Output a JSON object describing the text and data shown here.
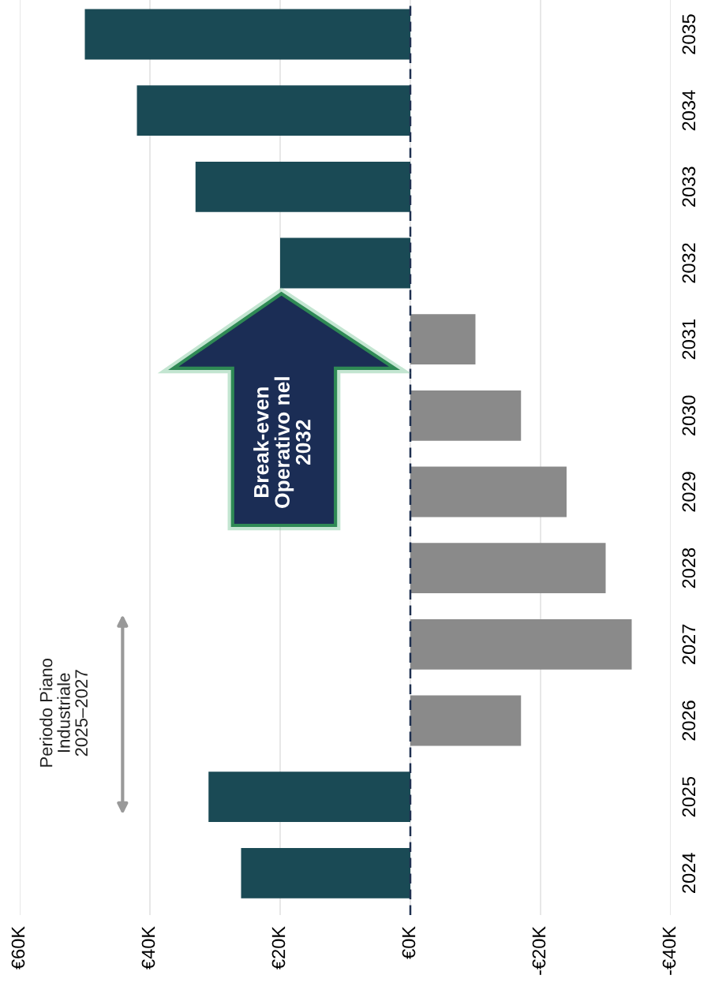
{
  "chart_data": {
    "type": "bar",
    "orientation": "horizontal",
    "categories": [
      "2035",
      "2034",
      "2033",
      "2032",
      "2031",
      "2030",
      "2029",
      "2028",
      "2027",
      "2026",
      "2025",
      "2024"
    ],
    "values": [
      50,
      42,
      33,
      20,
      -10,
      -17,
      -24,
      -30,
      -34,
      -17,
      31,
      26
    ],
    "colors": [
      "#1a4a55",
      "#1a4a55",
      "#1a4a55",
      "#1a4a55",
      "#8a8a8a",
      "#8a8a8a",
      "#8a8a8a",
      "#8a8a8a",
      "#8a8a8a",
      "#8a8a8a",
      "#1a4a55",
      "#1a4a55"
    ],
    "xlim": [
      60,
      -40
    ],
    "xticks": [
      {
        "value": 60,
        "label": "€60K"
      },
      {
        "value": 40,
        "label": "€40K"
      },
      {
        "value": 20,
        "label": "€20K"
      },
      {
        "value": 0,
        "label": "€0K"
      },
      {
        "value": -20,
        "label": "-€20K"
      },
      {
        "value": -40,
        "label": "-€40K"
      }
    ],
    "grid": "x",
    "ref_lines": [
      {
        "axis": "x",
        "value": 0,
        "color": "#1f3050",
        "line_style": "dashed"
      }
    ],
    "annotations": [
      "Break-even\nOperativo nel\n2032",
      "Periodo Piano\nIndustriale\n2025–2027"
    ]
  }
}
